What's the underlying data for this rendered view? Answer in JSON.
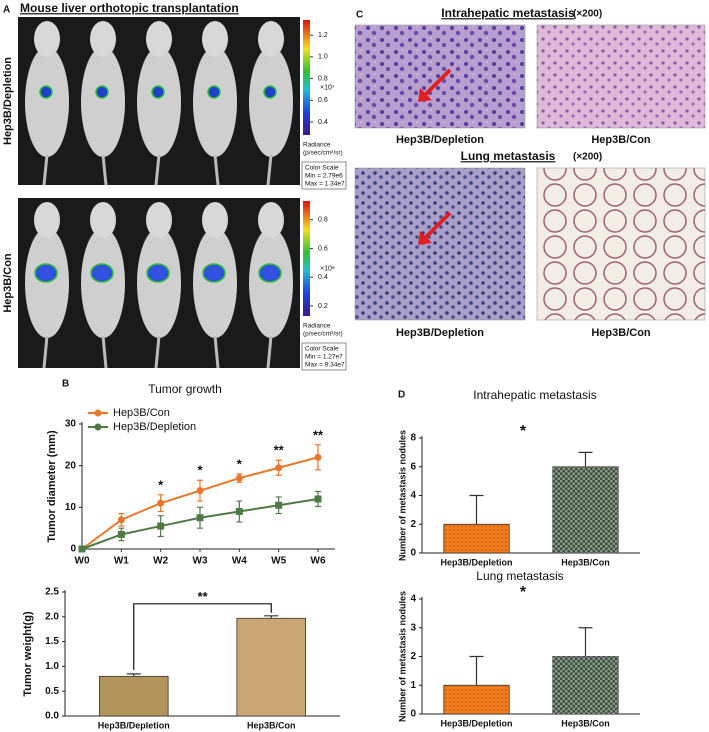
{
  "panels": {
    "A": {
      "letter": "A",
      "title": "Mouse liver orthotopic transplantation",
      "rows": [
        "Hep3B/Depletion",
        "Hep3B/Con"
      ],
      "scales": [
        {
          "lim": [
            0.28,
            1.34
          ],
          "ticks": [
            0.4,
            0.6,
            0.8,
            {
              "value": 1.0,
              "label": "1.0"
            },
            1.2
          ],
          "exponent": "×10⁷",
          "legend_title": [
            "Radiance",
            "(p/sec/cm²/sr)"
          ],
          "box": [
            "Color Scale",
            "Min = 2.79e6",
            "Max = 1.34e7"
          ]
        },
        {
          "lim": [
            0.13,
            0.93
          ],
          "ticks": [
            0.2,
            0.4,
            0.6,
            0.8
          ],
          "exponent": "×10⁸",
          "legend_title": [
            "Radiance",
            "(p/sec/cm²/sr)"
          ],
          "box": [
            "Color Scale",
            "Min = 1.27e7",
            "Max = 9.34e7"
          ]
        }
      ]
    },
    "B": {
      "letter": "B"
    },
    "C": {
      "letter": "C",
      "sections": [
        {
          "title": "Intrahepatic metastasis",
          "magnification": "(×200)",
          "labels": [
            "Hep3B/Depletion",
            "Hep3B/Con"
          ]
        },
        {
          "title": "Lung metastasis",
          "magnification": "(×200)",
          "labels": [
            "Hep3B/Depletion",
            "Hep3B/Con"
          ]
        }
      ]
    },
    "D": {
      "letter": "D"
    }
  },
  "chart_data": [
    {
      "type": "line",
      "title": "Tumor growth",
      "y_label": "Tumor diameter (mm)",
      "categories": [
        "W0",
        "W1",
        "W2",
        "W3",
        "W4",
        "W5",
        "W6"
      ],
      "series": [
        {
          "name": "Hep3B/Con",
          "color": "#e8772a",
          "marker": "circle",
          "values": [
            0,
            7,
            11,
            14,
            17,
            19.5,
            22
          ],
          "errors": [
            0,
            1.5,
            2,
            2.5,
            1,
            1.8,
            3
          ]
        },
        {
          "name": "Hep3B/Depletion",
          "color": "#4f7a45",
          "marker": "square",
          "values": [
            0,
            3.5,
            5.5,
            7.5,
            9,
            10.5,
            12
          ],
          "errors": [
            0,
            1.5,
            2.5,
            2.5,
            2.5,
            2,
            1.8
          ]
        }
      ],
      "annotations": [
        {
          "category": "W2",
          "text": "*"
        },
        {
          "category": "W3",
          "text": "*"
        },
        {
          "category": "W4",
          "text": "*"
        },
        {
          "category": "W5",
          "text": "**"
        },
        {
          "category": "W6",
          "text": "**"
        }
      ],
      "ylim": [
        0,
        30
      ],
      "yticks": [
        0,
        10,
        20,
        30
      ],
      "legend": "upper left"
    },
    {
      "type": "bar",
      "y_label": "Tumor weight(g)",
      "categories": [
        "Hep3B/Depletion",
        "Hep3B/Con"
      ],
      "values": [
        0.8,
        1.97
      ],
      "errors": [
        0.05,
        0.05
      ],
      "colors": [
        "#b0945a",
        "#c9a674"
      ],
      "annotation": "**",
      "ylim": [
        0,
        2.5
      ],
      "yticks": [
        {
          "value": 0,
          "label": "0.0"
        },
        0.5,
        {
          "value": 1,
          "label": "1.0"
        },
        1.5,
        {
          "value": 2,
          "label": "2.0"
        },
        2.5
      ]
    },
    {
      "type": "bar",
      "title": "Intrahepatic metastasis",
      "y_label": "Number of metastasis nodules",
      "categories": [
        "Hep3B/Depletion",
        "Hep3B/Con"
      ],
      "values": [
        2,
        6
      ],
      "errors": [
        2,
        1
      ],
      "colors": [
        "#f07c1e",
        "#3f4d40"
      ],
      "annotation": "*",
      "ylim": [
        0,
        8
      ],
      "yticks": [
        0,
        2,
        4,
        6,
        8
      ]
    },
    {
      "type": "bar",
      "title": "Lung metastasis",
      "y_label": "Number of metastasis nodules",
      "categories": [
        "Hep3B/Depletion",
        "Hep3B/Con"
      ],
      "values": [
        1,
        2
      ],
      "errors": [
        1,
        1
      ],
      "colors": [
        "#f07c1e",
        "#3f4d40"
      ],
      "annotation": "*",
      "ylim": [
        0,
        4
      ],
      "yticks": [
        0,
        1,
        2,
        3,
        4
      ]
    }
  ]
}
